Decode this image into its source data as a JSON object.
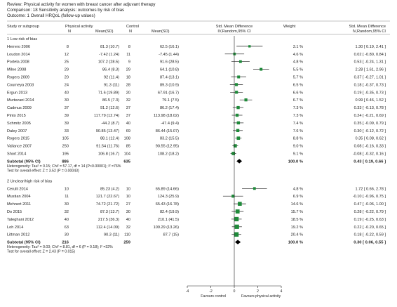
{
  "header": {
    "review": "Review:  Physical activity for women with breast cancer after adjuvant therapy",
    "comparison": "Comparison:  18 Sensitivity analysis: outcomes by risk of bias",
    "outcome": "Outcome:  1 Overall HRQoL (follow-up values)"
  },
  "columns": {
    "study": "Study or subgroup",
    "pa": "Physical activity",
    "control": "Control",
    "n": "N",
    "meansd": "Mean(SD)",
    "smd": "Std. Mean Difference",
    "smd_sub": "IV,Random,95% CI",
    "weight": "Weight",
    "smd_right": "Std. Mean Difference",
    "smd_right_sub": "IV,Random,95% CI"
  },
  "chart_data": {
    "type": "forest",
    "x_ticks": [
      -4,
      -2,
      0,
      2,
      4
    ],
    "x_range": [
      -4,
      4
    ],
    "favours_left": "Favours control",
    "favours_right": "Favours physical activity",
    "groups": [
      {
        "name": "1 Low risk of bias",
        "studies": [
          {
            "study": "Herrero 2006",
            "pa_n": "8",
            "pa_msd": "81.3 (10.7)",
            "c_n": "8",
            "c_msd": "62.5 (16.1)",
            "weight": "3.1 %",
            "ci_text": "1.30 [ 0.19, 2.41 ]",
            "est": 1.3,
            "lo": 0.19,
            "hi": 2.41,
            "w": 3.1
          },
          {
            "study": "Loudon 2014",
            "pa_n": "12",
            "pa_msd": "-7.42 (1.24)",
            "c_n": "11",
            "c_msd": "-7.45 (1.44)",
            "weight": "4.6 %",
            "ci_text": "0.02 [ -0.80, 0.84 ]",
            "est": 0.02,
            "lo": -0.8,
            "hi": 0.84,
            "w": 4.6
          },
          {
            "study": "Portela 2008",
            "pa_n": "25",
            "pa_msd": "107.2 (28.5)",
            "c_n": "9",
            "c_msd": "91.6 (28.5)",
            "weight": "4.8 %",
            "ci_text": "0.53 [ -0.24, 1.31 ]",
            "est": 0.53,
            "lo": -0.24,
            "hi": 1.31,
            "w": 4.8
          },
          {
            "study": "Milne 2008",
            "pa_n": "29",
            "pa_msd": "86.4 (8.3)",
            "c_n": "29",
            "c_msd": "64.1 (10.8)",
            "weight": "5.5 %",
            "ci_text": "2.28 [ 1.61, 2.96 ]",
            "est": 2.28,
            "lo": 1.61,
            "hi": 2.96,
            "w": 5.5
          },
          {
            "study": "Rogers 2009",
            "pa_n": "20",
            "pa_msd": "92 (11.4)",
            "c_n": "18",
            "c_msd": "87.4 (13.1)",
            "weight": "5.7 %",
            "ci_text": "0.37 [ -0.27, 1.01 ]",
            "est": 0.37,
            "lo": -0.27,
            "hi": 1.01,
            "w": 5.7
          },
          {
            "study": "Courneya 2003",
            "pa_n": "24",
            "pa_msd": "91.3 (11)",
            "c_n": "28",
            "c_msd": "89.3 (10.9)",
            "weight": "6.5 %",
            "ci_text": "0.18 [ -0.37, 0.73 ]",
            "est": 0.18,
            "lo": -0.37,
            "hi": 0.73,
            "w": 6.5
          },
          {
            "study": "Ergun 2013",
            "pa_n": "40",
            "pa_msd": "71.6 (19.89)",
            "c_n": "20",
            "c_msd": "67.91 (16.7)",
            "weight": "6.6 %",
            "ci_text": "0.19 [ -0.35, 0.73 ]",
            "est": 0.19,
            "lo": -0.35,
            "hi": 0.73,
            "w": 6.6
          },
          {
            "study": "Murtezani 2014",
            "pa_n": "30",
            "pa_msd": "86.5 (7.3)",
            "c_n": "32",
            "c_msd": "79.1 (7.5)",
            "weight": "6.7 %",
            "ci_text": "0.99 [ 0.46, 1.52 ]",
            "est": 0.99,
            "lo": 0.46,
            "hi": 1.52,
            "w": 6.7
          },
          {
            "study": "Cadmus 2009",
            "pa_n": "37",
            "pa_msd": "91.2 (12.6)",
            "c_n": "37",
            "c_msd": "86.2 (17.4)",
            "weight": "7.3 %",
            "ci_text": "0.33 [ -0.13, 0.78 ]",
            "est": 0.33,
            "lo": -0.13,
            "hi": 0.78,
            "w": 7.3
          },
          {
            "study": "Pinto 2015",
            "pa_n": "39",
            "pa_msd": "117.79 (12.74)",
            "c_n": "37",
            "c_msd": "113.98 (18.02)",
            "weight": "7.3 %",
            "ci_text": "0.24 [ -0.21, 0.69 ]",
            "est": 0.24,
            "lo": -0.21,
            "hi": 0.69,
            "w": 7.3
          },
          {
            "study": "Schmitz 2005",
            "pa_n": "39",
            "pa_msd": "-44.2 (8.7)",
            "c_n": "40",
            "c_msd": "-47.4 (9.4)",
            "weight": "7.4 %",
            "ci_text": "0.35 [ -0.09, 0.79 ]",
            "est": 0.35,
            "lo": -0.09,
            "hi": 0.79,
            "w": 7.4
          },
          {
            "study": "Daley 2007",
            "pa_n": "33",
            "pa_msd": "90.85 (13.47)",
            "c_n": "69",
            "c_msd": "86.44 (15.07)",
            "weight": "7.6 %",
            "ci_text": "0.30 [ -0.12, 0.72 ]",
            "est": 0.3,
            "lo": -0.12,
            "hi": 0.72,
            "w": 7.6
          },
          {
            "study": "Rogers 2015",
            "pa_n": "105",
            "pa_msd": "88.1 (12.4)",
            "c_n": "108",
            "c_msd": "83.2 (15.5)",
            "weight": "8.8 %",
            "ci_text": "0.35 [ 0.08, 0.62 ]",
            "est": 0.35,
            "lo": 0.08,
            "hi": 0.62,
            "w": 8.8
          },
          {
            "study": "Vallance 2007",
            "pa_n": "250",
            "pa_msd": "91.54 (11.76)",
            "c_n": "85",
            "c_msd": "90.55 (12.95)",
            "weight": "9.0 %",
            "ci_text": "0.08 [ -0.16, 0.33 ]",
            "est": 0.08,
            "lo": -0.16,
            "hi": 0.33,
            "w": 9.0
          },
          {
            "study": "Short 2014",
            "pa_n": "195",
            "pa_msd": "106.8 (16.7)",
            "c_n": "104",
            "c_msd": "108.2 (18.2)",
            "weight": "9.1 %",
            "ci_text": "-0.08 [ -0.32, 0.16 ]",
            "est": -0.08,
            "lo": -0.32,
            "hi": 0.16,
            "w": 9.1
          }
        ],
        "subtotal": {
          "label": "Subtotal (95% CI)",
          "pa_n": "886",
          "c_n": "635",
          "weight": "100.0 %",
          "ci_text": "0.43 [ 0.19, 0.66 ]",
          "est": 0.43,
          "lo": 0.19,
          "hi": 0.66
        },
        "heterogeneity": "Heterogeneity: Tau² = 0.15; Chi² = 57.17, df = 14 (P<0.00001); I² =76%",
        "overall_effect": "Test for overall effect: Z = 3.52 (P = 0.00043)"
      },
      {
        "name": "2 Unclear/high risk of bias",
        "studies": [
          {
            "study": "Cerulli 2014",
            "pa_n": "10",
            "pa_msd": "85.23 (4.2)",
            "c_n": "10",
            "c_msd": "65.89 (14.66)",
            "weight": "4.8 %",
            "ci_text": "1.72 [ 0.66, 2.78 ]",
            "est": 1.72,
            "lo": 0.66,
            "hi": 2.78,
            "w": 4.8
          },
          {
            "study": "Mustian 2004",
            "pa_n": "11",
            "pa_msd": "121.7 (22.67)",
            "c_n": "10",
            "c_msd": "124.3 (25.9)",
            "weight": "6.9 %",
            "ci_text": "-0.10 [ -0.96, 0.75 ]",
            "est": -0.1,
            "lo": -0.96,
            "hi": 0.75,
            "w": 6.9
          },
          {
            "study": "Mehnert 2011",
            "pa_n": "30",
            "pa_msd": "74.72 (21.72)",
            "c_n": "27",
            "c_msd": "65.43 (16.78)",
            "weight": "14.6 %",
            "ci_text": "0.47 [ -0.06, 1.00 ]",
            "est": 0.47,
            "lo": -0.06,
            "hi": 1.0,
            "w": 14.6
          },
          {
            "study": "Do 2015",
            "pa_n": "32",
            "pa_msd": "87.3 (13.7)",
            "c_n": "30",
            "c_msd": "82.4 (19.9)",
            "weight": "15.7 %",
            "ci_text": "0.28 [ -0.22, 0.79 ]",
            "est": 0.28,
            "lo": -0.22,
            "hi": 0.79,
            "w": 15.7
          },
          {
            "study": "Taleghani 2012",
            "pa_n": "40",
            "pa_msd": "217.5 (36.3)",
            "c_n": "40",
            "c_msd": "210.1 (41.5)",
            "weight": "18.5 %",
            "ci_text": "0.19 [ -0.25, 0.63 ]",
            "est": 0.19,
            "lo": -0.25,
            "hi": 0.63,
            "w": 18.5
          },
          {
            "study": "Loh 2014",
            "pa_n": "63",
            "pa_msd": "112.4 (14.09)",
            "c_n": "32",
            "c_msd": "109.29 (13.26)",
            "weight": "19.2 %",
            "ci_text": "0.22 [ -0.20, 0.65 ]",
            "est": 0.22,
            "lo": -0.2,
            "hi": 0.65,
            "w": 19.2
          },
          {
            "study": "Littman 2012",
            "pa_n": "30",
            "pa_msd": "90.3 (11)",
            "c_n": "110",
            "c_msd": "87.7 (15)",
            "weight": "20.4 %",
            "ci_text": "0.18 [ -0.22, 0.59 ]",
            "est": 0.18,
            "lo": -0.22,
            "hi": 0.59,
            "w": 20.4
          }
        ],
        "subtotal": {
          "label": "Subtotal (95% CI)",
          "pa_n": "216",
          "c_n": "259",
          "weight": "100.0 %",
          "ci_text": "0.30 [ 0.06, 0.55 ]",
          "est": 0.3,
          "lo": 0.06,
          "hi": 0.55
        },
        "heterogeneity": "Heterogeneity: Tau² = 0.03; Chi² = 8.81, df = 6 (P = 0.18); I² =32%",
        "overall_effect": "Test for overall effect: Z = 2.43 (P = 0.015)"
      }
    ]
  }
}
